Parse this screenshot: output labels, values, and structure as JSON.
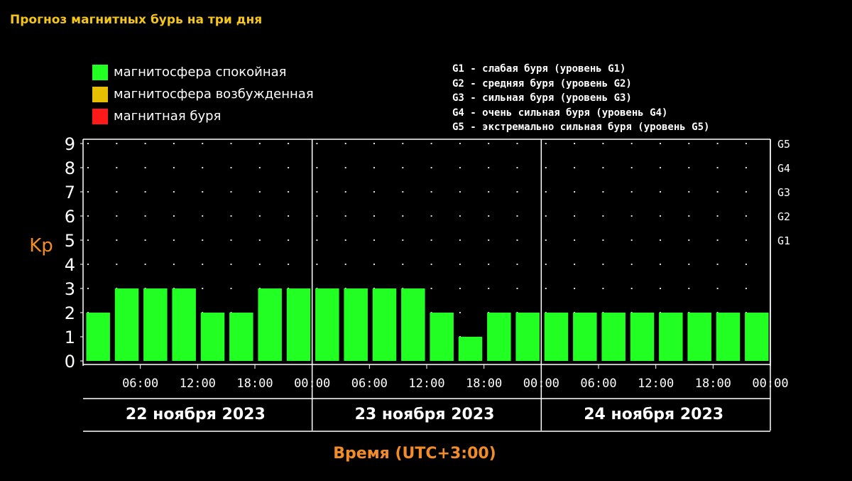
{
  "page_title": "Прогноз магнитных бурь на три дня",
  "legend": {
    "states": [
      {
        "label": "магнитосфера спокойная",
        "color": "#22ff22"
      },
      {
        "label": "магнитосфера возбужденная",
        "color": "#e6c000"
      },
      {
        "label": "магнитная буря",
        "color": "#ff1a1a"
      }
    ],
    "g_levels": [
      "G1 - слабая буря (уровень G1)",
      "G2 - средняя буря (уровень G2)",
      "G3 - сильная буря (уровень G3)",
      "G4 - очень сильная буря (уровень G4)",
      "G5 - экстремально сильная буря (уровень G5)"
    ]
  },
  "chart_data": {
    "type": "bar",
    "title": "Прогноз магнитных бурь на три дня",
    "ylabel": "Kp",
    "xlabel": "Время (UTC+3:00)",
    "ylim": [
      0,
      9
    ],
    "y_ticks": [
      0,
      1,
      2,
      3,
      4,
      5,
      6,
      7,
      8,
      9
    ],
    "g_ticks": [
      {
        "label": "G1",
        "kp": 5
      },
      {
        "label": "G2",
        "kp": 6
      },
      {
        "label": "G3",
        "kp": 7
      },
      {
        "label": "G4",
        "kp": 8
      },
      {
        "label": "G5",
        "kp": 9
      }
    ],
    "x_ticks": [
      "06:00",
      "12:00",
      "18:00",
      "00:00",
      "06:00",
      "12:00",
      "18:00",
      "00:00",
      "06:00",
      "12:00",
      "18:00",
      "00:00"
    ],
    "days": [
      "22 ноября 2023",
      "23 ноября 2023",
      "24 ноября 2023"
    ],
    "bar_color": "#22ff22",
    "values": [
      2,
      3,
      3,
      3,
      2,
      2,
      3,
      3,
      3,
      3,
      3,
      3,
      2,
      1,
      2,
      2,
      2,
      2,
      2,
      2,
      2,
      2,
      2,
      2
    ],
    "grid": "dotted",
    "legend_position": "top"
  }
}
